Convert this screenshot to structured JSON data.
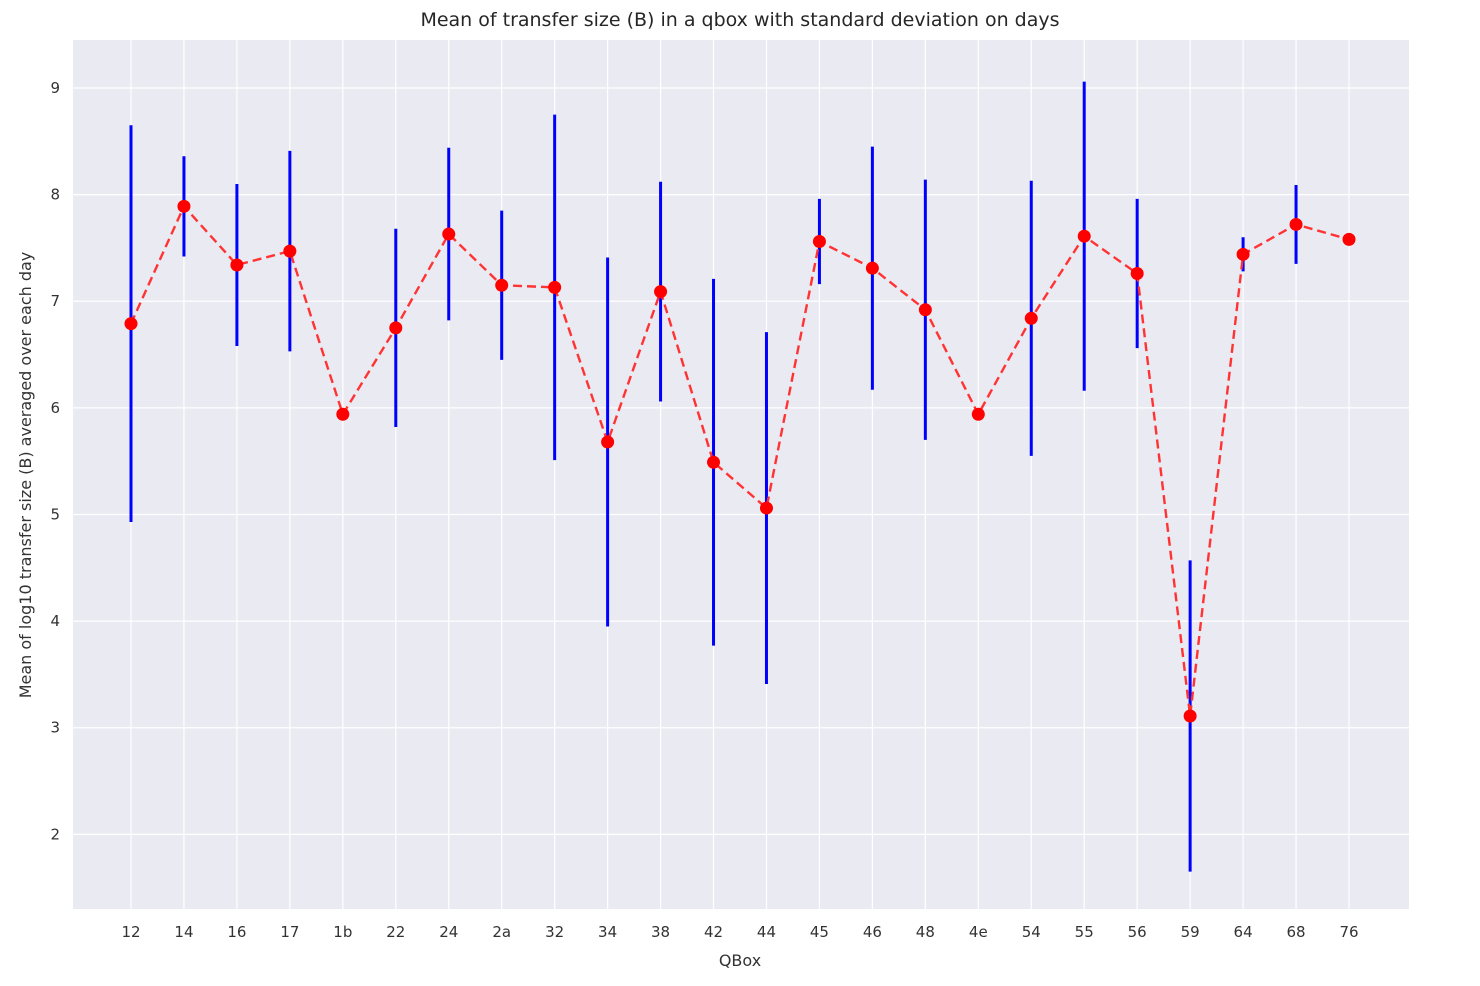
{
  "chart_data": {
    "type": "line",
    "title": "Mean of transfer size (B) in a qbox with standard deviation on days",
    "xlabel": "QBox",
    "ylabel": "Mean of log10 transfer size (B) averaged over each day",
    "ylim": [
      1.3,
      9.45
    ],
    "yticks": [
      2,
      3,
      4,
      5,
      6,
      7,
      8,
      9
    ],
    "grid": true,
    "categories": [
      "12",
      "14",
      "16",
      "17",
      "1b",
      "22",
      "24",
      "2a",
      "32",
      "34",
      "38",
      "42",
      "44",
      "45",
      "46",
      "48",
      "4e",
      "54",
      "55",
      "56",
      "59",
      "64",
      "68",
      "76"
    ],
    "series": [
      {
        "values": [
          6.79,
          7.89,
          7.34,
          7.47,
          5.94,
          6.75,
          7.63,
          7.15,
          7.13,
          5.68,
          7.09,
          5.49,
          5.06,
          7.56,
          7.31,
          6.92,
          5.94,
          6.84,
          7.61,
          7.26,
          3.11,
          7.44,
          7.72,
          7.58
        ],
        "std": [
          1.86,
          0.47,
          0.76,
          0.94,
          0,
          0.93,
          0.81,
          0.7,
          1.62,
          1.73,
          1.03,
          1.72,
          1.65,
          0.4,
          1.14,
          1.22,
          0,
          1.29,
          1.45,
          0.7,
          1.46,
          0.16,
          0.37,
          0
        ],
        "line_color": "#ff3333",
        "marker_color": "#ff0000",
        "error_color": "#0000ff"
      }
    ],
    "colors": {
      "plot_background": "#eaeaf2",
      "grid": "#ffffff"
    }
  }
}
